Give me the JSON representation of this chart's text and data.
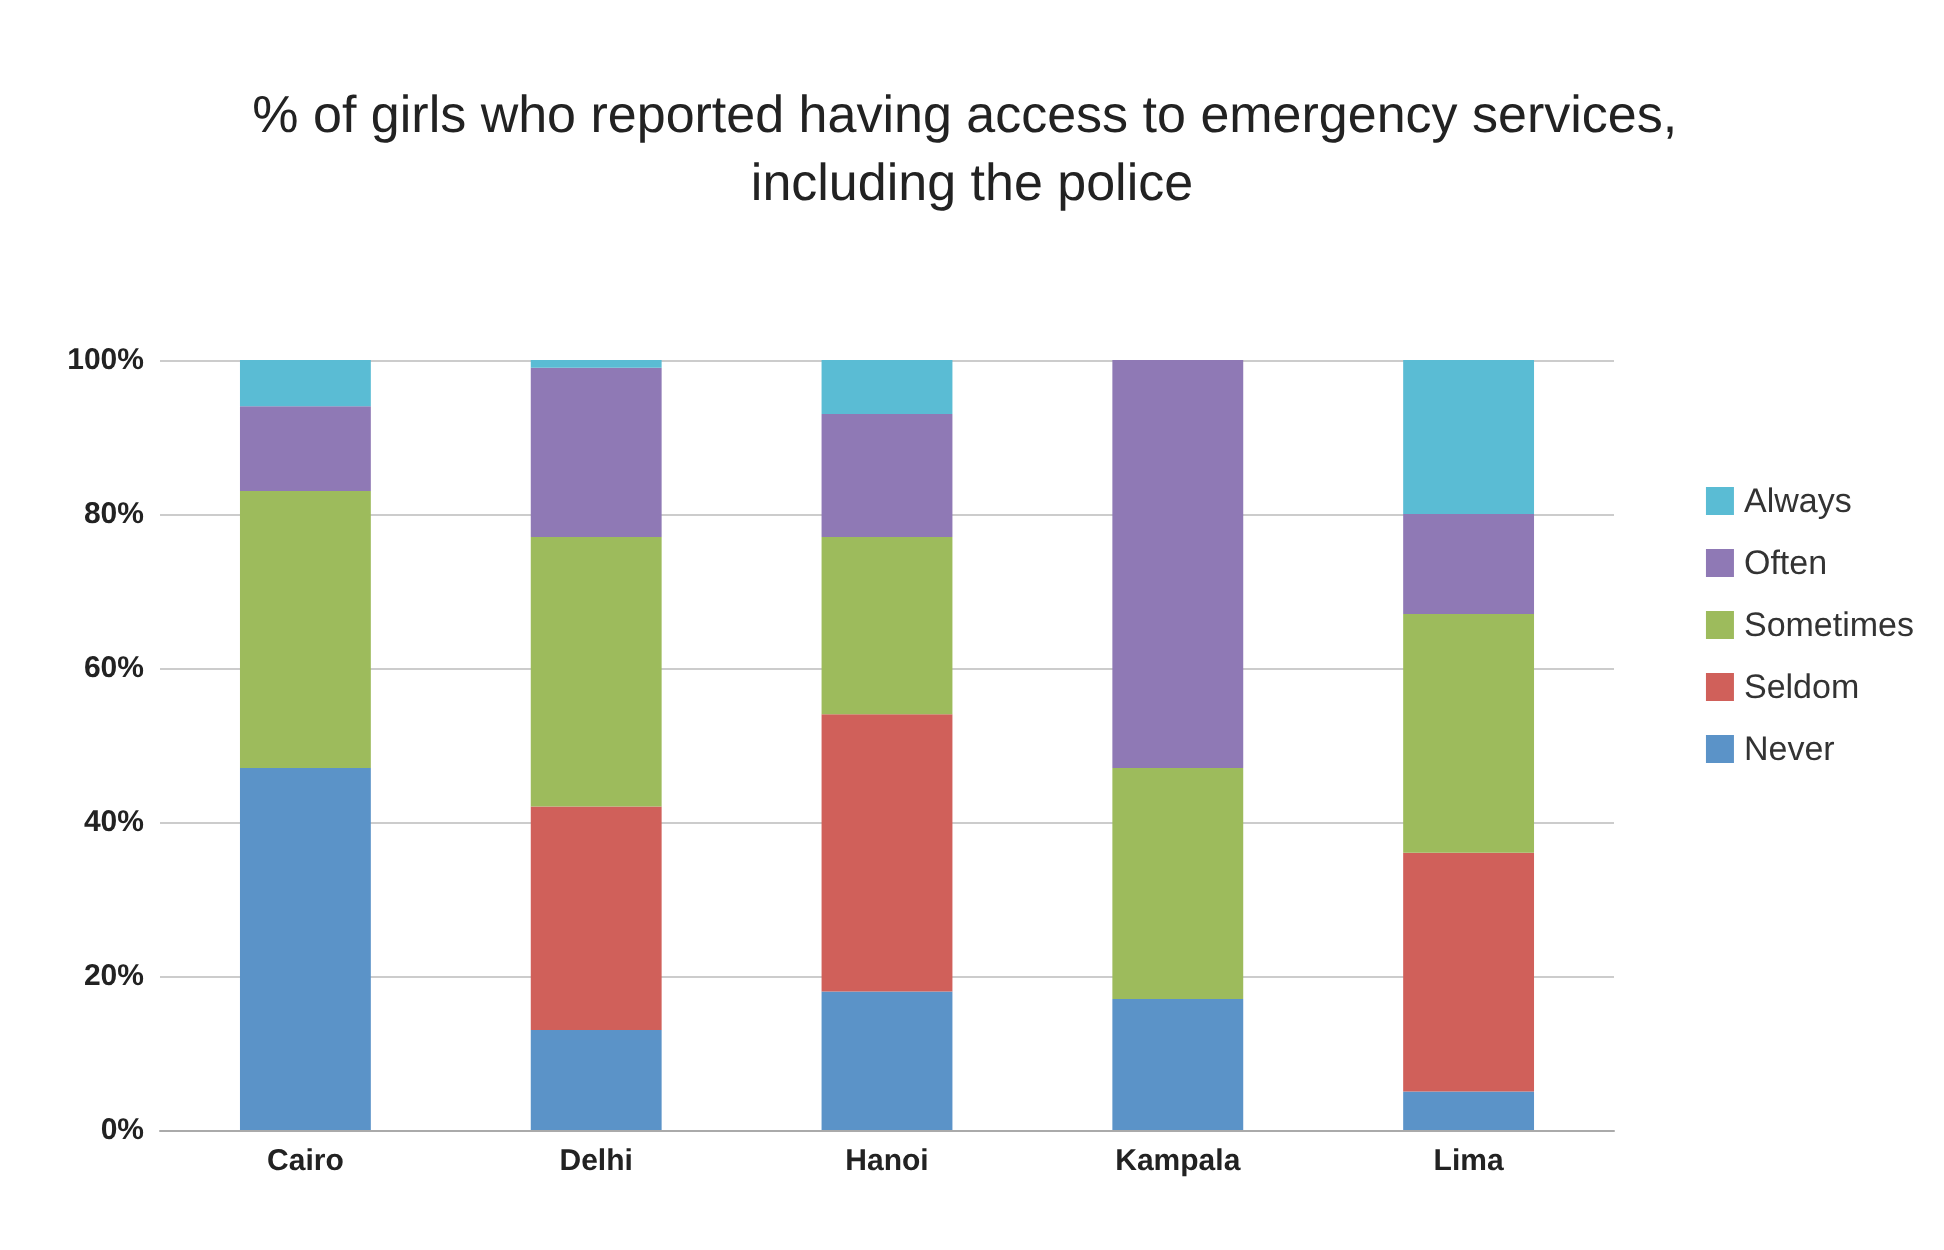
{
  "chart_data": {
    "type": "bar",
    "title": "% of girls who reported having access to emergency services, including the police",
    "categories": [
      "Cairo",
      "Delhi",
      "Hanoi",
      "Kampala",
      "Lima"
    ],
    "stacked": true,
    "series": [
      {
        "name": "Never",
        "color": "#5b93c8",
        "values": [
          47,
          13,
          18,
          17,
          5
        ]
      },
      {
        "name": "Seldom",
        "color": "#d0605a",
        "values": [
          0,
          29,
          36,
          0,
          31
        ]
      },
      {
        "name": "Sometimes",
        "color": "#9dbb5c",
        "values": [
          36,
          35,
          23,
          30,
          31
        ]
      },
      {
        "name": "Often",
        "color": "#8f79b5",
        "values": [
          11,
          22,
          16,
          53,
          13
        ]
      },
      {
        "name": "Always",
        "color": "#5abcd4",
        "values": [
          6,
          1,
          7,
          0,
          20
        ]
      }
    ],
    "ylim": [
      0,
      100
    ],
    "yticks": [
      {
        "value": 0,
        "label": "0%"
      },
      {
        "value": 20,
        "label": "20%"
      },
      {
        "value": 40,
        "label": "40%"
      },
      {
        "value": 60,
        "label": "60%"
      },
      {
        "value": 80,
        "label": "80%"
      },
      {
        "value": 100,
        "label": "100%"
      }
    ],
    "grid": "y",
    "legend": "right"
  }
}
